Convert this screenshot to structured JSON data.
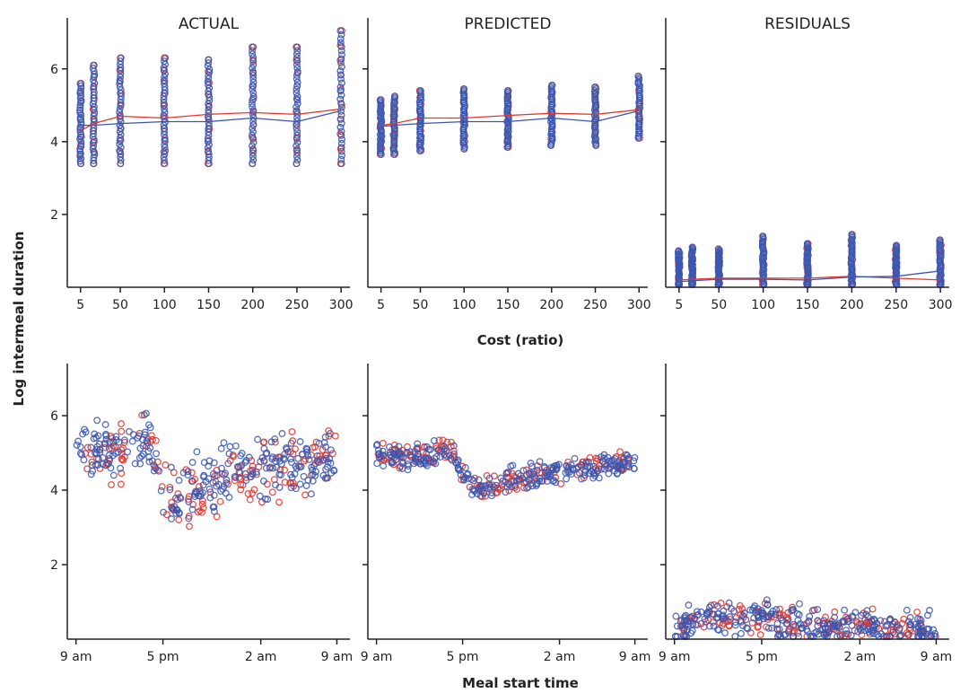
{
  "figure": {
    "ylabel": "Log intermeal duration",
    "row_xlabels": [
      "Cost (ratio)",
      "Meal start time"
    ]
  },
  "colors": {
    "series_a": "#e8352a",
    "series_b": "#3a56b0",
    "axis": "#222222"
  },
  "chart_data": [
    {
      "id": "top-actual",
      "type": "scatter",
      "title": "ACTUAL",
      "xticks": [
        5,
        50,
        100,
        150,
        200,
        250,
        300
      ],
      "xticklabels": [
        "5",
        "50",
        "100",
        "150",
        "200",
        "250",
        "300"
      ],
      "yticks": [
        2,
        4,
        6
      ],
      "yticklabels": [
        "2",
        "4",
        "6"
      ],
      "ylim": [
        0,
        7.4
      ],
      "columns": [
        {
          "x": 5,
          "min": 3.4,
          "max": 5.6
        },
        {
          "x": 20,
          "min": 3.4,
          "max": 6.1
        },
        {
          "x": 50,
          "min": 3.4,
          "max": 6.3
        },
        {
          "x": 100,
          "min": 3.4,
          "max": 6.3
        },
        {
          "x": 150,
          "min": 3.4,
          "max": 6.25
        },
        {
          "x": 200,
          "min": 3.4,
          "max": 6.6
        },
        {
          "x": 250,
          "min": 3.4,
          "max": 6.6
        },
        {
          "x": 300,
          "min": 3.4,
          "max": 7.05
        }
      ],
      "series": [
        {
          "color": "#e8352a",
          "mean_line": {
            "x": [
              5,
              20,
              50,
              100,
              150,
              200,
              250,
              300
            ],
            "y": [
              4.3,
              4.5,
              4.7,
              4.65,
              4.75,
              4.8,
              4.75,
              4.9
            ]
          }
        },
        {
          "color": "#3a56b0",
          "mean_line": {
            "x": [
              5,
              20,
              50,
              100,
              150,
              200,
              250,
              300
            ],
            "y": [
              4.45,
              4.45,
              4.5,
              4.55,
              4.55,
              4.65,
              4.55,
              4.85
            ]
          }
        }
      ]
    },
    {
      "id": "top-predicted",
      "type": "scatter",
      "title": "PREDICTED",
      "xticks": [
        5,
        50,
        100,
        150,
        200,
        250,
        300
      ],
      "xticklabels": [
        "5",
        "50",
        "100",
        "150",
        "200",
        "250",
        "300"
      ],
      "yticks": [
        2,
        4,
        6
      ],
      "yticklabels": [
        "",
        "",
        ""
      ],
      "ylim": [
        0,
        7.4
      ],
      "columns": [
        {
          "x": 5,
          "min": 3.65,
          "max": 5.15
        },
        {
          "x": 20,
          "min": 3.65,
          "max": 5.25
        },
        {
          "x": 50,
          "min": 3.75,
          "max": 5.4
        },
        {
          "x": 100,
          "min": 3.8,
          "max": 5.45
        },
        {
          "x": 150,
          "min": 3.85,
          "max": 5.4
        },
        {
          "x": 200,
          "min": 3.9,
          "max": 5.55
        },
        {
          "x": 250,
          "min": 3.9,
          "max": 5.5
        },
        {
          "x": 300,
          "min": 4.1,
          "max": 5.8
        }
      ],
      "series": [
        {
          "color": "#e8352a",
          "mean_line": {
            "x": [
              5,
              20,
              50,
              100,
              150,
              200,
              250,
              300
            ],
            "y": [
              4.45,
              4.5,
              4.65,
              4.65,
              4.72,
              4.78,
              4.75,
              4.88
            ]
          }
        },
        {
          "color": "#3a56b0",
          "mean_line": {
            "x": [
              5,
              20,
              50,
              100,
              150,
              200,
              250,
              300
            ],
            "y": [
              4.42,
              4.45,
              4.5,
              4.55,
              4.55,
              4.65,
              4.55,
              4.85
            ]
          }
        }
      ]
    },
    {
      "id": "top-residuals",
      "type": "scatter",
      "title": "RESIDUALS",
      "xticks": [
        5,
        50,
        100,
        150,
        200,
        250,
        300
      ],
      "xticklabels": [
        "5",
        "50",
        "100",
        "150",
        "200",
        "250",
        "300"
      ],
      "yticks": [
        2,
        4,
        6
      ],
      "yticklabels": [
        "",
        "",
        ""
      ],
      "ylim": [
        0,
        7.4
      ],
      "columns": [
        {
          "x": 5,
          "min": 0.02,
          "max": 1.0
        },
        {
          "x": 20,
          "min": 0.02,
          "max": 1.1
        },
        {
          "x": 50,
          "min": 0.02,
          "max": 1.05
        },
        {
          "x": 100,
          "min": 0.02,
          "max": 1.4
        },
        {
          "x": 150,
          "min": 0.02,
          "max": 1.2
        },
        {
          "x": 200,
          "min": 0.02,
          "max": 1.45
        },
        {
          "x": 250,
          "min": 0.02,
          "max": 1.15
        },
        {
          "x": 300,
          "min": 0.02,
          "max": 1.3
        }
      ],
      "series": [
        {
          "color": "#e8352a",
          "mean_line": {
            "x": [
              5,
              20,
              50,
              100,
              150,
              200,
              250,
              300
            ],
            "y": [
              0.2,
              0.22,
              0.25,
              0.25,
              0.25,
              0.3,
              0.25,
              0.2
            ]
          }
        },
        {
          "color": "#3a56b0",
          "mean_line": {
            "x": [
              5,
              20,
              50,
              100,
              150,
              200,
              250,
              300
            ],
            "y": [
              0.15,
              0.18,
              0.22,
              0.22,
              0.2,
              0.28,
              0.3,
              0.45
            ]
          }
        }
      ]
    },
    {
      "id": "bottom-actual",
      "type": "scatter",
      "title": "",
      "xticks": [
        0,
        8,
        17,
        24
      ],
      "xticklabels": [
        "9 am",
        "5 pm",
        "2 am",
        "9 am"
      ],
      "yticks": [
        2,
        4,
        6
      ],
      "yticklabels": [
        "2",
        "4",
        "6"
      ],
      "ylim": [
        0,
        7.4
      ],
      "trend": {
        "x": [
          0,
          2,
          4,
          6,
          7,
          8,
          9,
          10,
          12,
          15,
          18,
          21,
          24
        ],
        "y": [
          5.0,
          5.0,
          5.0,
          5.1,
          5.3,
          4.0,
          3.7,
          3.8,
          4.2,
          4.5,
          4.6,
          4.7,
          4.9
        ]
      },
      "spread": 0.6
    },
    {
      "id": "bottom-predicted",
      "type": "scatter",
      "title": "",
      "xticks": [
        0,
        8,
        17,
        24
      ],
      "xticklabels": [
        "9 am",
        "5 pm",
        "2 am",
        "9 am"
      ],
      "yticks": [
        2,
        4,
        6
      ],
      "yticklabels": [
        "",
        "",
        ""
      ],
      "ylim": [
        0,
        7.4
      ],
      "trend": {
        "x": [
          0,
          2,
          4,
          6,
          7,
          8,
          9,
          10,
          12,
          15,
          18,
          21,
          24
        ],
        "y": [
          5.0,
          4.9,
          4.9,
          5.0,
          5.1,
          4.4,
          4.0,
          4.05,
          4.2,
          4.4,
          4.55,
          4.65,
          4.75
        ]
      },
      "spread": 0.25
    },
    {
      "id": "bottom-residuals",
      "type": "scatter",
      "title": "",
      "xticks": [
        0,
        8,
        17,
        24
      ],
      "xticklabels": [
        "9 am",
        "5 pm",
        "2 am",
        "9 am"
      ],
      "yticks": [
        2,
        4,
        6
      ],
      "yticklabels": [
        "",
        "",
        ""
      ],
      "ylim": [
        0,
        7.4
      ],
      "trend": {
        "x": [
          0,
          2,
          4,
          6,
          8,
          10,
          13,
          16,
          20,
          24
        ],
        "y": [
          0.35,
          0.45,
          0.55,
          0.6,
          0.7,
          0.45,
          0.35,
          0.35,
          0.3,
          0.2
        ]
      },
      "spread": 0.35
    }
  ]
}
